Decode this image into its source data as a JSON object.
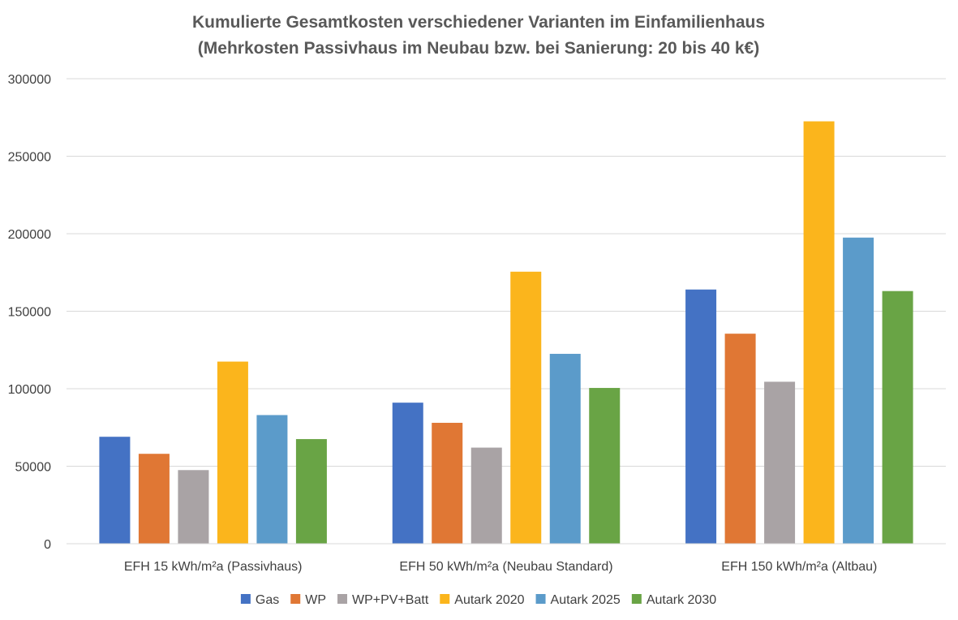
{
  "chart_data": {
    "type": "bar",
    "title": [
      "Kumulierte Gesamtkosten verschiedener Varianten im Einfamilienhaus",
      "(Mehrkosten Passivhaus im Neubau bzw. bei Sanierung: 20 bis 40 k€)"
    ],
    "xlabel": "",
    "ylabel": "",
    "ylim": [
      0,
      300000
    ],
    "yticks": [
      0,
      50000,
      100000,
      150000,
      200000,
      250000,
      300000
    ],
    "grid": true,
    "legend_position": "bottom",
    "categories": [
      "EFH 15 kWh/m²a (Passivhaus)",
      "EFH 50 kWh/m²a (Neubau Standard)",
      "EFH 150 kWh/m²a (Altbau)"
    ],
    "series": [
      {
        "name": "Gas",
        "color": "#4472c4",
        "values": [
          69000,
          91000,
          164000
        ]
      },
      {
        "name": "WP",
        "color": "#e07734",
        "values": [
          58000,
          78000,
          135500
        ]
      },
      {
        "name": "WP+PV+Batt",
        "color": "#a9a3a5",
        "values": [
          47500,
          62000,
          104500
        ]
      },
      {
        "name": "Autark 2020",
        "color": "#fbb51c",
        "values": [
          117500,
          175500,
          272500
        ]
      },
      {
        "name": "Autark 2025",
        "color": "#5b9bca",
        "values": [
          83000,
          122500,
          197500
        ]
      },
      {
        "name": "Autark 2030",
        "color": "#69a445",
        "values": [
          67500,
          100500,
          163000
        ]
      }
    ]
  }
}
